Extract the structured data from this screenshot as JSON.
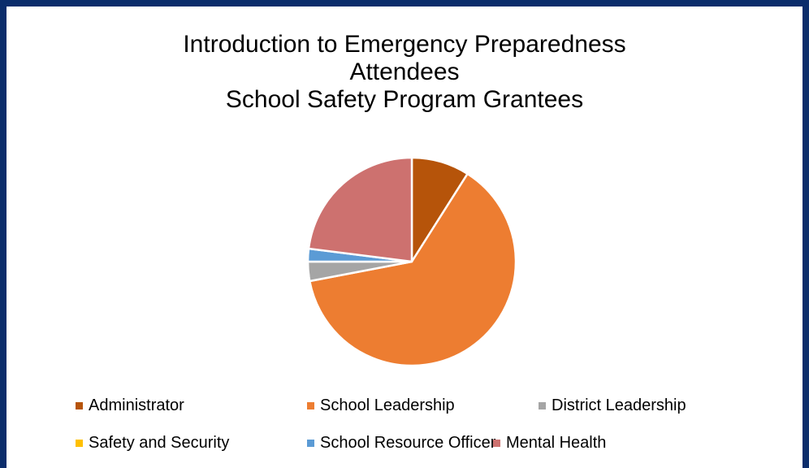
{
  "chart_data": {
    "type": "pie",
    "title_lines": [
      "Introduction to Emergency Preparedness",
      "Attendees",
      "School Safety Program Grantees"
    ],
    "legend_position": "bottom",
    "slices": [
      {
        "label": "Administrator",
        "value": 9.0,
        "color": "#b6540a"
      },
      {
        "label": "School Leadership",
        "value": 63.0,
        "color": "#ed7d31"
      },
      {
        "label": "District Leadership",
        "value": 3.0,
        "color": "#a5a5a5"
      },
      {
        "label": "Safety and Security",
        "value": 0.0,
        "color": "#ffc000"
      },
      {
        "label": "School Resource Officer",
        "value": 2.0,
        "color": "#5b9bd5"
      },
      {
        "label": "Mental Health",
        "value": 23.0,
        "color": "#cd716f"
      }
    ]
  }
}
